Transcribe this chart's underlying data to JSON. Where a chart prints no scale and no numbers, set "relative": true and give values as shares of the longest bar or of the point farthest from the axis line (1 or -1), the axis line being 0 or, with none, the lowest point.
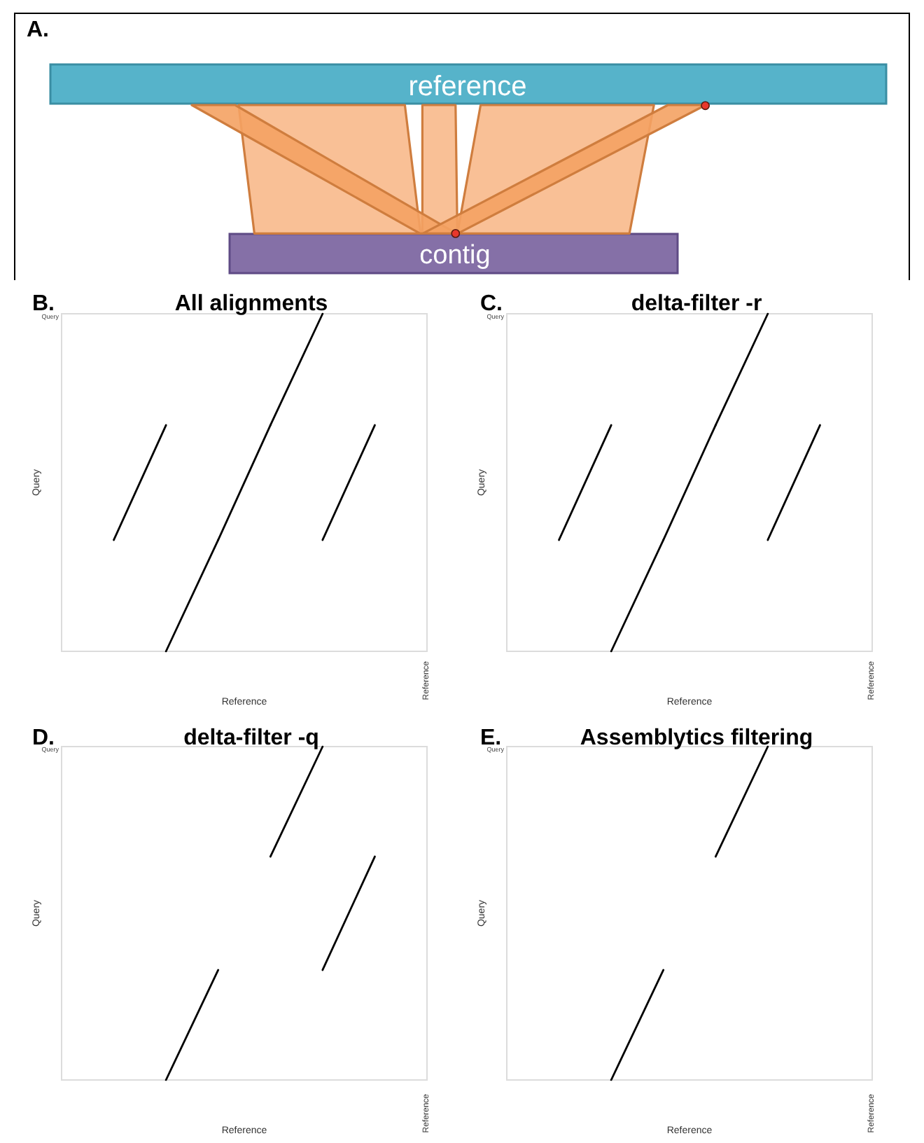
{
  "chart_data": [
    {
      "type": "other",
      "annotations": [
        "A.",
        "reference",
        "contig"
      ]
    },
    {
      "type": "line",
      "relative": true,
      "title": "All alignments",
      "annotations": [
        "B.",
        "Query",
        "Reference"
      ],
      "xlabel": "Reference",
      "ylabel": "Query",
      "categories": [
        null,
        null,
        null,
        null,
        null,
        null,
        null,
        null
      ],
      "series": [
        {
          "color": "#000000",
          "values": [
            null,
            null,
            0,
            0.33,
            null,
            null,
            null,
            null
          ]
        },
        {
          "color": "#000000",
          "values": [
            null,
            null,
            null,
            0.33,
            0.67,
            null,
            null,
            null
          ]
        },
        {
          "color": "#000000",
          "values": [
            null,
            null,
            null,
            null,
            0.67,
            1,
            null,
            null
          ]
        },
        {
          "color": "#000000",
          "values": [
            null,
            0.33,
            0.67,
            null,
            null,
            null,
            null,
            null
          ]
        },
        {
          "color": "#000000",
          "values": [
            null,
            null,
            null,
            null,
            null,
            0.33,
            0.67,
            null
          ]
        }
      ]
    },
    {
      "type": "line",
      "relative": true,
      "title": "delta-filter -r",
      "annotations": [
        "C.",
        "Query",
        "Reference"
      ],
      "xlabel": "Reference",
      "ylabel": "Query",
      "categories": [
        null,
        null,
        null,
        null,
        null,
        null,
        null,
        null
      ],
      "series": [
        {
          "color": "#000000",
          "values": [
            null,
            null,
            0,
            0.33,
            null,
            null,
            null,
            null
          ]
        },
        {
          "color": "#000000",
          "values": [
            null,
            null,
            null,
            0.33,
            0.67,
            null,
            null,
            null
          ]
        },
        {
          "color": "#000000",
          "values": [
            null,
            null,
            null,
            null,
            0.67,
            1,
            null,
            null
          ]
        },
        {
          "color": "#000000",
          "values": [
            null,
            0.33,
            0.67,
            null,
            null,
            null,
            null,
            null
          ]
        },
        {
          "color": "#000000",
          "values": [
            null,
            null,
            null,
            null,
            null,
            0.33,
            0.67,
            null
          ]
        }
      ]
    },
    {
      "type": "line",
      "relative": true,
      "title": "delta-filter -q",
      "annotations": [
        "D.",
        "Query",
        "Reference"
      ],
      "xlabel": "Reference",
      "ylabel": "Query",
      "categories": [
        null,
        null,
        null,
        null,
        null,
        null,
        null,
        null
      ],
      "series": [
        {
          "color": "#000000",
          "values": [
            null,
            null,
            0,
            0.33,
            null,
            null,
            null,
            null
          ]
        },
        {
          "color": "#000000",
          "values": [
            null,
            null,
            null,
            null,
            0.67,
            1,
            null,
            null
          ]
        },
        {
          "color": "#000000",
          "values": [
            null,
            null,
            null,
            null,
            null,
            0.33,
            0.67,
            null
          ]
        }
      ]
    },
    {
      "type": "line",
      "relative": true,
      "title": "Assemblytics filtering",
      "annotations": [
        "E.",
        "Query",
        "Reference"
      ],
      "xlabel": "Reference",
      "ylabel": "Query",
      "categories": [
        null,
        null,
        null,
        null,
        null,
        null,
        null,
        null
      ],
      "series": [
        {
          "color": "#000000",
          "values": [
            null,
            null,
            0,
            0.33,
            null,
            null,
            null,
            null
          ]
        },
        {
          "color": "#000000",
          "values": [
            null,
            null,
            null,
            null,
            0.67,
            1,
            null,
            null
          ]
        }
      ]
    }
  ]
}
